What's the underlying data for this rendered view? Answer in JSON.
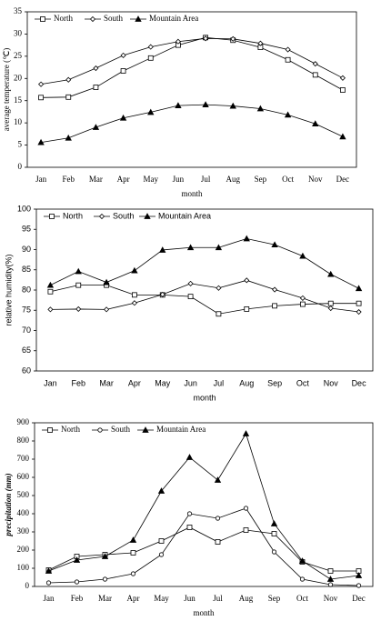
{
  "chart_data": [
    {
      "type": "line",
      "xlabel": "month",
      "ylabel": "average temperature (℃)",
      "categories": [
        "Jan",
        "Feb",
        "Mar",
        "Apr",
        "May",
        "Jun",
        "Jul",
        "Aug",
        "Sep",
        "Oct",
        "Nov",
        "Dec"
      ],
      "ylim": [
        0,
        35
      ],
      "yticks": [
        0,
        5,
        10,
        15,
        20,
        25,
        30,
        35
      ],
      "series": [
        {
          "name": "North",
          "color": "#000",
          "marker": "square",
          "values": [
            15.7,
            15.8,
            18,
            21.7,
            24.6,
            27.5,
            29.2,
            28.6,
            27,
            24.2,
            20.8,
            17.4
          ]
        },
        {
          "name": "South",
          "color": "#000",
          "marker": "diamond",
          "values": [
            18.7,
            19.7,
            22.3,
            25.2,
            27.1,
            28.3,
            29,
            28.9,
            27.9,
            26.5,
            23.3,
            20.1
          ]
        },
        {
          "name": "Mountain Area",
          "color": "#000",
          "marker": "triangle",
          "values": [
            5.6,
            6.6,
            9,
            11.1,
            12.4,
            13.9,
            14.1,
            13.8,
            13.2,
            11.8,
            9.8,
            6.9
          ]
        }
      ]
    },
    {
      "type": "line",
      "xlabel": "month",
      "ylabel": "relative humidity(%)",
      "categories": [
        "Jan",
        "Feb",
        "Mar",
        "Apr",
        "May",
        "Jun",
        "Jul",
        "Aug",
        "Sep",
        "Oct",
        "Nov",
        "Dec"
      ],
      "ylim": [
        60,
        100
      ],
      "yticks": [
        60,
        65,
        70,
        75,
        80,
        85,
        90,
        95,
        100
      ],
      "series": [
        {
          "name": "North",
          "color": "#000",
          "marker": "square",
          "values": [
            79.6,
            81.2,
            81.2,
            78.8,
            78.8,
            78.4,
            74.1,
            75.3,
            76.1,
            76.5,
            76.7,
            76.7
          ]
        },
        {
          "name": "South",
          "color": "#000",
          "marker": "diamond",
          "values": [
            75.2,
            75.3,
            75.2,
            76.8,
            78.9,
            81.6,
            80.5,
            82.4,
            80.1,
            78,
            75.5,
            74.6
          ]
        },
        {
          "name": "Mountain Area",
          "color": "#000",
          "marker": "triangle",
          "values": [
            81.2,
            84.6,
            81.9,
            84.8,
            89.9,
            90.5,
            90.5,
            92.7,
            91.2,
            88.4,
            83.9,
            80.4
          ]
        }
      ]
    },
    {
      "type": "line",
      "xlabel": "month",
      "ylabel": "precipitation (mm)",
      "categories": [
        "Jan",
        "Feb",
        "Mar",
        "Apr",
        "May",
        "Jun",
        "Jul",
        "Aug",
        "Sep",
        "Oct",
        "Nov",
        "Dec"
      ],
      "ylim": [
        0,
        900
      ],
      "yticks": [
        0,
        100,
        200,
        300,
        400,
        500,
        600,
        700,
        800,
        900
      ],
      "series": [
        {
          "name": "North",
          "color": "#000",
          "marker": "square",
          "values": [
            90,
            165,
            175,
            185,
            250,
            325,
            245,
            310,
            290,
            135,
            85,
            85
          ]
        },
        {
          "name": "South",
          "color": "#000",
          "marker": "circle",
          "values": [
            20,
            25,
            40,
            70,
            175,
            400,
            375,
            430,
            190,
            40,
            10,
            5
          ]
        },
        {
          "name": "Mountain Area",
          "color": "#000",
          "marker": "triangle",
          "values": [
            85,
            145,
            165,
            255,
            525,
            710,
            585,
            840,
            345,
            140,
            40,
            60
          ]
        }
      ]
    }
  ]
}
